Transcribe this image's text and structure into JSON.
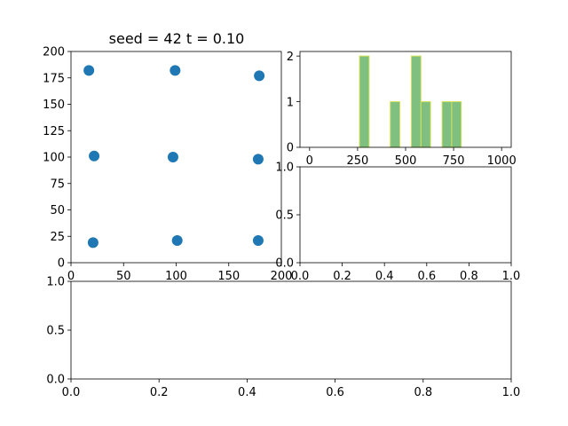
{
  "figure": {
    "title": "seed = 42     t = 0.10"
  },
  "colors": {
    "scatter": "#1f77b4",
    "bar_fill": "#7fbf7f",
    "bar_edge": "#d4e157",
    "axis": "#000000",
    "background": "#ffffff"
  },
  "chart_data": [
    {
      "id": "scatter",
      "type": "scatter",
      "xlim": [
        0,
        200
      ],
      "ylim": [
        0,
        200
      ],
      "xticks": [
        "0",
        "50",
        "100",
        "150",
        "200"
      ],
      "yticks": [
        "0",
        "25",
        "50",
        "75",
        "100",
        "125",
        "150",
        "175",
        "200"
      ],
      "grid": false,
      "points": [
        {
          "x": 17,
          "y": 182
        },
        {
          "x": 99,
          "y": 182
        },
        {
          "x": 179,
          "y": 177
        },
        {
          "x": 22,
          "y": 101
        },
        {
          "x": 97,
          "y": 100
        },
        {
          "x": 178,
          "y": 98
        },
        {
          "x": 21,
          "y": 19
        },
        {
          "x": 101,
          "y": 21
        },
        {
          "x": 178,
          "y": 21
        }
      ]
    },
    {
      "id": "histogram",
      "type": "bar",
      "xlim": [
        -50,
        1050
      ],
      "ylim": [
        0,
        2.1
      ],
      "xticks": [
        "0",
        "250",
        "500",
        "750",
        "1000"
      ],
      "yticks": [
        "0",
        "1",
        "2"
      ],
      "grid": false,
      "bins": [
        {
          "start": 260,
          "end": 310,
          "count": 2
        },
        {
          "start": 420,
          "end": 470,
          "count": 1
        },
        {
          "start": 530,
          "end": 580,
          "count": 2
        },
        {
          "start": 580,
          "end": 630,
          "count": 1
        },
        {
          "start": 690,
          "end": 740,
          "count": 1
        },
        {
          "start": 740,
          "end": 790,
          "count": 1
        }
      ]
    },
    {
      "id": "empty-middle",
      "type": "line",
      "xlim": [
        0,
        1
      ],
      "ylim": [
        0,
        1
      ],
      "xticks": [
        "0.0",
        "0.2",
        "0.4",
        "0.6",
        "0.8",
        "1.0"
      ],
      "yticks": [
        "0.0",
        "0.5",
        "1.0"
      ],
      "grid": false,
      "series": []
    },
    {
      "id": "empty-bottom",
      "type": "line",
      "xlim": [
        0,
        1
      ],
      "ylim": [
        0,
        1
      ],
      "xticks": [
        "0.0",
        "0.2",
        "0.4",
        "0.6",
        "0.8",
        "1.0"
      ],
      "yticks": [
        "0.0",
        "0.5",
        "1.0"
      ],
      "grid": false,
      "series": []
    }
  ]
}
